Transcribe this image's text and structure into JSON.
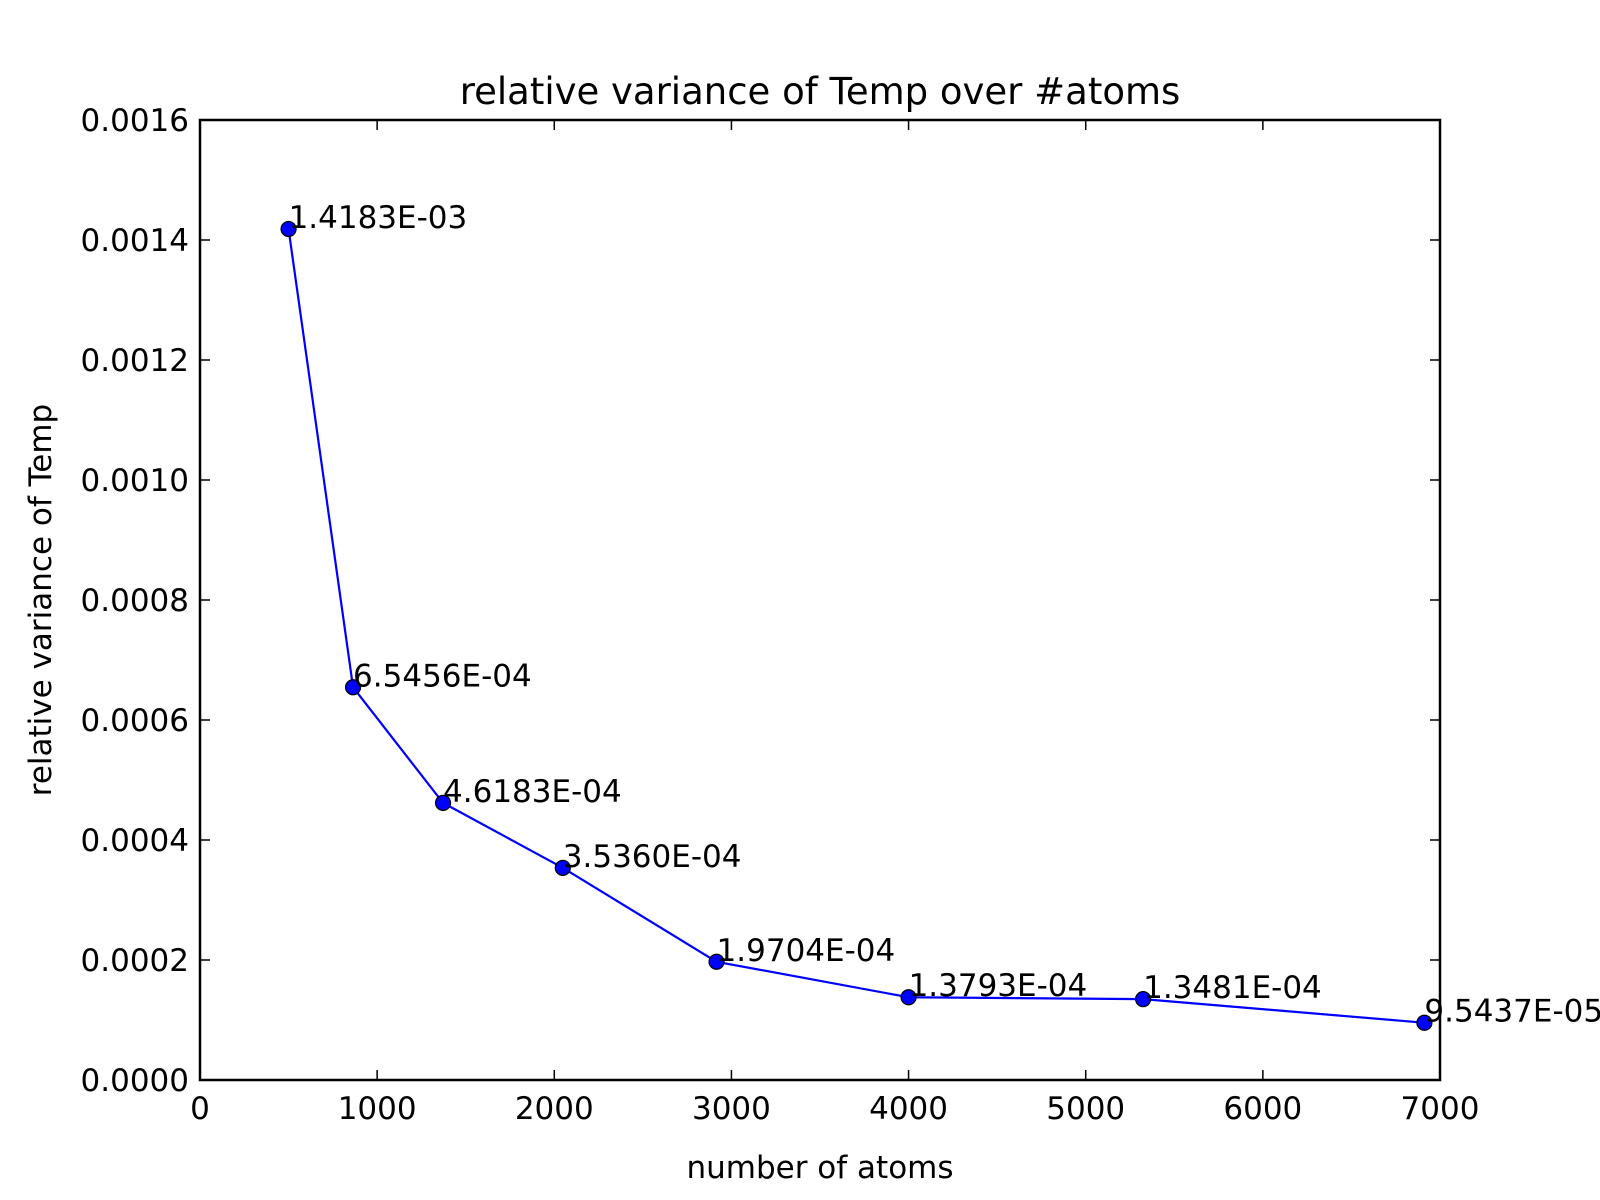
{
  "chart_data": {
    "type": "line",
    "title": "relative variance of Temp over #atoms",
    "xlabel": "number of atoms",
    "ylabel": "relative variance of Temp",
    "xlim": [
      0,
      7000
    ],
    "ylim": [
      0,
      0.0016
    ],
    "xticks": [
      "0",
      "1000",
      "2000",
      "3000",
      "4000",
      "5000",
      "6000",
      "7000"
    ],
    "yticks": [
      "0.0000",
      "0.0002",
      "0.0004",
      "0.0006",
      "0.0008",
      "0.0010",
      "0.0012",
      "0.0014",
      "0.0016"
    ],
    "grid": false,
    "series": [
      {
        "color": "#0000ff",
        "marker": "circle",
        "x": [
          500,
          864,
          1372,
          2048,
          2916,
          4000,
          5324,
          6912
        ],
        "y": [
          0.0014183,
          0.00065456,
          0.00046183,
          0.0003536,
          0.00019704,
          0.00013793,
          0.00013481,
          9.5437e-05
        ],
        "point_labels": [
          "1.4183E-03",
          "6.5456E-04",
          "4.6183E-04",
          "3.5360E-04",
          "1.9704E-04",
          "1.3793E-04",
          "1.3481E-04",
          "9.5437E-05"
        ]
      }
    ]
  }
}
